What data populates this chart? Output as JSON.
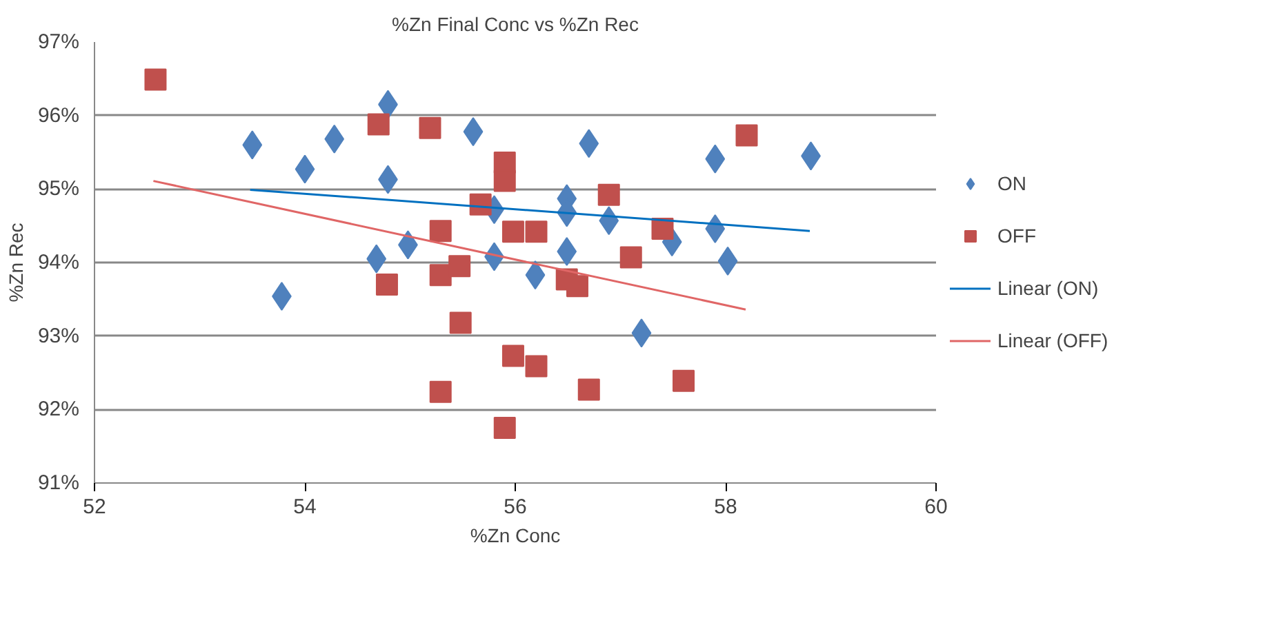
{
  "chart_data": {
    "type": "scatter",
    "title": "%Zn Final Conc vs %Zn Rec",
    "xlabel": "%Zn Conc",
    "ylabel": "%Zn Rec",
    "xlim": [
      52,
      60
    ],
    "xticks": [
      52,
      54,
      56,
      58,
      60
    ],
    "ylim": [
      91,
      97
    ],
    "yticks": [
      {
        "value": 91,
        "label": "91%"
      },
      {
        "value": 92,
        "label": "92%"
      },
      {
        "value": 93,
        "label": "93%"
      },
      {
        "value": 94,
        "label": "94%"
      },
      {
        "value": 95,
        "label": "95%"
      },
      {
        "value": 96,
        "label": "96%"
      },
      {
        "value": 97,
        "label": "97%"
      }
    ],
    "grid": "y",
    "legend": "right",
    "series": [
      {
        "name": "ON",
        "color": "#4f81bd",
        "marker": "diamond",
        "x": [
          53.5,
          54.0,
          54.28,
          54.79,
          54.79,
          55.6,
          56.7,
          53.78,
          54.68,
          54.98,
          55.8,
          55.8,
          56.19,
          56.49,
          56.49,
          56.49,
          56.89,
          57.49,
          57.9,
          58.81,
          57.9,
          58.02,
          57.2
        ],
        "values": [
          95.6,
          95.27,
          95.68,
          96.15,
          95.13,
          95.78,
          95.62,
          93.54,
          94.05,
          94.24,
          94.72,
          94.08,
          93.83,
          94.87,
          94.68,
          94.15,
          94.57,
          94.28,
          95.41,
          95.45,
          94.46,
          94.02,
          93.04
        ]
      },
      {
        "name": "OFF",
        "color": "#c0504d",
        "marker": "square",
        "x": [
          52.58,
          54.7,
          55.19,
          55.9,
          55.9,
          55.67,
          55.29,
          55.98,
          56.2,
          54.78,
          55.29,
          55.47,
          56.49,
          56.59,
          55.48,
          55.98,
          56.2,
          55.29,
          56.7,
          55.9,
          56.89,
          57.4,
          57.1,
          58.2,
          57.6
        ],
        "values": [
          96.49,
          95.88,
          95.83,
          95.36,
          95.11,
          94.79,
          94.43,
          94.42,
          94.42,
          93.7,
          93.83,
          93.95,
          93.77,
          93.68,
          93.18,
          92.73,
          92.59,
          92.24,
          92.27,
          91.75,
          94.92,
          94.46,
          94.07,
          95.73,
          92.39
        ]
      },
      {
        "name": "Linear (ON)",
        "type": "line",
        "color": "#0070c0",
        "x": [
          53.48,
          58.8
        ],
        "values": [
          94.99,
          94.43
        ]
      },
      {
        "name": "Linear (OFF)",
        "type": "line",
        "color": "#e06666",
        "x": [
          52.56,
          58.19
        ],
        "values": [
          95.11,
          93.36
        ]
      }
    ]
  }
}
